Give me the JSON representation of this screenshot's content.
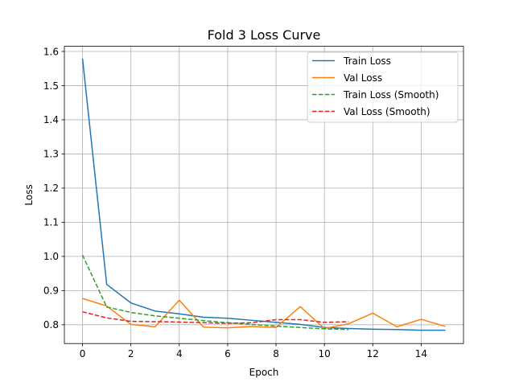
{
  "chart_data": {
    "type": "line",
    "title": "Fold 3 Loss Curve",
    "xlabel": "Epoch",
    "ylabel": "Loss",
    "xlim": [
      -0.75,
      15.75
    ],
    "ylim": [
      0.745,
      1.615
    ],
    "xticks": [
      0,
      2,
      4,
      6,
      8,
      10,
      12,
      14
    ],
    "yticks": [
      0.8,
      0.9,
      1.0,
      1.1,
      1.2,
      1.3,
      1.4,
      1.5,
      1.6
    ],
    "grid": true,
    "legend_position": "top-right",
    "series": [
      {
        "name": "Train Loss",
        "color": "#1f77b4",
        "dashed": false,
        "x": [
          0,
          1,
          2,
          3,
          4,
          5,
          6,
          7,
          8,
          9,
          10,
          11,
          12,
          13,
          14,
          15
        ],
        "values": [
          1.579,
          0.918,
          0.864,
          0.84,
          0.832,
          0.822,
          0.819,
          0.813,
          0.807,
          0.801,
          0.792,
          0.789,
          0.787,
          0.786,
          0.784,
          0.784
        ]
      },
      {
        "name": "Val Loss",
        "color": "#ff7f0e",
        "dashed": false,
        "x": [
          0,
          1,
          2,
          3,
          4,
          5,
          6,
          7,
          8,
          9,
          10,
          11,
          12,
          13,
          14,
          15
        ],
        "values": [
          0.877,
          0.855,
          0.801,
          0.794,
          0.872,
          0.793,
          0.791,
          0.795,
          0.792,
          0.853,
          0.789,
          0.803,
          0.834,
          0.794,
          0.816,
          0.795
        ]
      },
      {
        "name": "Train Loss (Smooth)",
        "color": "#2ca02c",
        "dashed": true,
        "x": [
          0,
          1,
          2,
          3,
          4,
          5,
          6,
          7,
          8,
          9,
          10,
          11
        ],
        "values": [
          1.004,
          0.852,
          0.836,
          0.826,
          0.819,
          0.812,
          0.806,
          0.801,
          0.796,
          0.792,
          0.788,
          0.786
        ]
      },
      {
        "name": "Val Loss (Smooth)",
        "color": "#d62728",
        "dashed": true,
        "x": [
          0,
          1,
          2,
          3,
          4,
          5,
          6,
          7,
          8,
          9,
          10,
          11
        ],
        "values": [
          0.838,
          0.82,
          0.81,
          0.809,
          0.808,
          0.806,
          0.804,
          0.806,
          0.815,
          0.815,
          0.807,
          0.809
        ]
      }
    ]
  }
}
